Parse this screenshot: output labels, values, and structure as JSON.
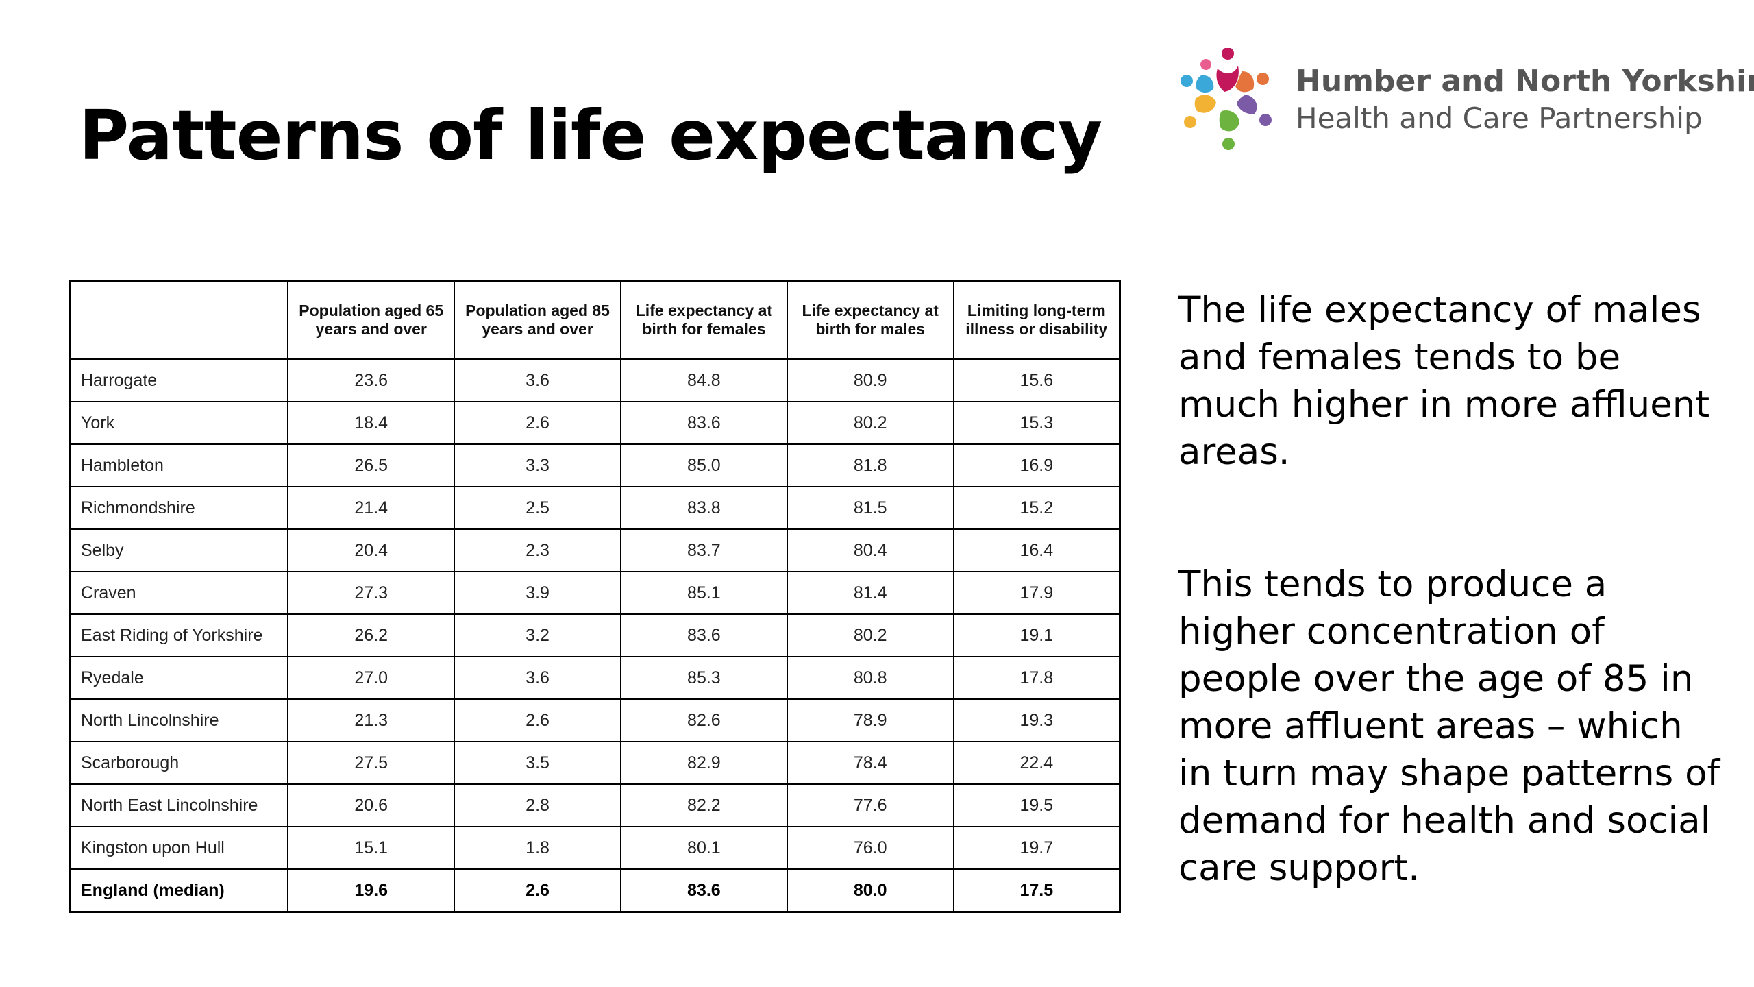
{
  "slide": {
    "title": "Patterns of life expectancy"
  },
  "logo": {
    "line1": "Humber and North Yorkshire",
    "line2": "Health and Care Partnership",
    "colors": [
      "#c2185b",
      "#e5733c",
      "#7b5aa6",
      "#f2b233",
      "#6cb33f",
      "#3aa8d8",
      "#e95e8f"
    ]
  },
  "table": {
    "headers": [
      "",
      "Population aged 65 years and over",
      "Population aged 85 years and over",
      "Life expectancy at birth for females",
      "Life expectancy at birth for males",
      "Limiting long-term illness or disability"
    ],
    "rows": [
      [
        "Harrogate",
        "23.6",
        "3.6",
        "84.8",
        "80.9",
        "15.6"
      ],
      [
        "York",
        "18.4",
        "2.6",
        "83.6",
        "80.2",
        "15.3"
      ],
      [
        "Hambleton",
        "26.5",
        "3.3",
        "85.0",
        "81.8",
        "16.9"
      ],
      [
        "Richmondshire",
        "21.4",
        "2.5",
        "83.8",
        "81.5",
        "15.2"
      ],
      [
        "Selby",
        "20.4",
        "2.3",
        "83.7",
        "80.4",
        "16.4"
      ],
      [
        "Craven",
        "27.3",
        "3.9",
        "85.1",
        "81.4",
        "17.9"
      ],
      [
        "East Riding of Yorkshire",
        "26.2",
        "3.2",
        "83.6",
        "80.2",
        "19.1"
      ],
      [
        "Ryedale",
        "27.0",
        "3.6",
        "85.3",
        "80.8",
        "17.8"
      ],
      [
        "North Lincolnshire",
        "21.3",
        "2.6",
        "82.6",
        "78.9",
        "19.3"
      ],
      [
        "Scarborough",
        "27.5",
        "3.5",
        "82.9",
        "78.4",
        "22.4"
      ],
      [
        "North East Lincolnshire",
        "20.6",
        "2.8",
        "82.2",
        "77.6",
        "19.5"
      ],
      [
        "Kingston upon Hull",
        "15.1",
        "1.8",
        "80.1",
        "76.0",
        "19.7"
      ],
      [
        "England (median)",
        "19.6",
        "2.6",
        "83.6",
        "80.0",
        "17.5"
      ]
    ]
  },
  "side_text": {
    "paragraph1": "The life expectancy of males and females tends to be much higher in more affluent areas.",
    "paragraph2": "This tends to produce a higher concentration of people over the age of 85 in more affluent areas – which in turn may shape patterns of demand for health and social care support."
  }
}
